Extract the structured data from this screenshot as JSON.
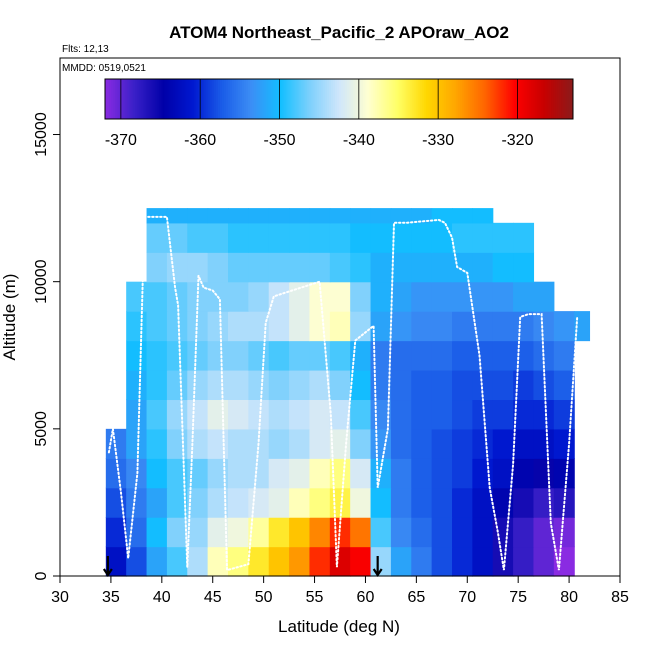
{
  "chart_data": {
    "type": "heatmap",
    "title": "ATOM4 Northeast_Pacific_2 APOraw_AO2",
    "annotations": [
      "Flts: 12,13",
      "MMDD: 0519,0521"
    ],
    "xlabel": "Latitude (deg N)",
    "ylabel": "Altitude (m)",
    "xlim": [
      30,
      85
    ],
    "ylim": [
      0,
      17600
    ],
    "xticks": [
      30,
      35,
      40,
      45,
      50,
      55,
      60,
      65,
      70,
      75,
      80,
      85
    ],
    "yticks": [
      0,
      5000,
      10000,
      15000
    ],
    "colorbar": {
      "placement": "top",
      "range": [
        -372,
        -313
      ],
      "ticks": [
        -370,
        -360,
        -350,
        -340,
        -330,
        -320
      ],
      "colors": [
        "#8a2be2",
        "#3a20c8",
        "#0000a8",
        "#0018d0",
        "#1a5ce8",
        "#3c8ef5",
        "#12bfff",
        "#7dd0fc",
        "#cfe6fb",
        "#ffffd0",
        "#ffff66",
        "#ffd700",
        "#ffa500",
        "#ff6400",
        "#ff0000",
        "#c80000",
        "#8b1a1a"
      ]
    },
    "curtain": {
      "lat_edges": [
        34.5,
        36.5,
        38.5,
        40.5,
        42.5,
        44.5,
        46.5,
        48.5,
        50.5,
        52.5,
        54.5,
        56.5,
        58.5,
        60.5,
        62.5,
        64.5,
        66.5,
        68.5,
        70.5,
        72.5,
        74.5,
        76.5,
        78.5,
        80.5,
        82.0
      ],
      "alt_edges": [
        0,
        1000,
        2000,
        3000,
        4000,
        5000,
        6000,
        7000,
        8000,
        9000,
        10000,
        11000,
        12000,
        12500
      ],
      "values": [
        [
          -362,
          -358,
          -352,
          -348,
          -344,
          -338,
          -336,
          -333,
          -330,
          -327,
          -322,
          -318,
          -320,
          -345,
          -352,
          -355,
          -358,
          -360,
          -362,
          -366,
          -368,
          -370,
          -372,
          null
        ],
        [
          -360,
          -356,
          -350,
          -346,
          -345,
          -341,
          -340,
          -337,
          -333,
          -330,
          -326,
          -322,
          -325,
          -348,
          -354,
          -356,
          -358,
          -360,
          -362,
          -366,
          -368,
          -370,
          -371,
          null
        ],
        [
          -358,
          -355,
          -352,
          -348,
          -346,
          -344,
          -343,
          -342,
          -341,
          -338,
          -336,
          -334,
          -340,
          -350,
          -355,
          -357,
          -358,
          -360,
          -362,
          -364,
          -366,
          -368,
          -367,
          null
        ],
        [
          -356,
          -354,
          -350,
          -348,
          -347,
          -345,
          -344,
          -344,
          -342,
          -341,
          -338,
          -336,
          -342,
          -351,
          -355,
          -357,
          -358,
          -359,
          -361,
          -362,
          -364,
          -365,
          -364,
          null
        ],
        [
          -355,
          -352,
          -349,
          -346,
          -344,
          -343,
          -344,
          -344,
          -345,
          -344,
          -342,
          -341,
          -346,
          -353,
          -356,
          -357,
          -358,
          -359,
          -360,
          -361,
          -362,
          -362,
          -361,
          null
        ],
        [
          null,
          -352,
          -348,
          -345,
          -343,
          -341,
          -342,
          -343,
          -344,
          -343,
          -342,
          -343,
          -348,
          -354,
          -356,
          -357,
          -357,
          -358,
          -359,
          -359,
          -360,
          -360,
          -359,
          null
        ],
        [
          null,
          -351,
          -349,
          -347,
          -345,
          -344,
          -344,
          -345,
          -346,
          -345,
          -344,
          -346,
          -350,
          -355,
          -356,
          -357,
          -357,
          -358,
          -358,
          -358,
          -359,
          -358,
          -357,
          null
        ],
        [
          null,
          -350,
          -349,
          -348,
          -347,
          -346,
          -346,
          -347,
          -348,
          -347,
          -347,
          -348,
          -351,
          -355,
          -356,
          -356,
          -356,
          -357,
          -357,
          -357,
          -357,
          -356,
          -355,
          null
        ],
        [
          null,
          -349,
          -348,
          -347,
          -346,
          -345,
          -344,
          -344,
          -343,
          -341,
          -339,
          -338,
          -345,
          -352,
          -353,
          -354,
          -354,
          -355,
          -355,
          -355,
          -355,
          -354,
          -353,
          -352
        ],
        [
          null,
          -348,
          -348,
          -347,
          -346,
          -346,
          -346,
          -345,
          -343,
          -341,
          -339,
          -339,
          -346,
          -351,
          -352,
          -353,
          -353,
          -353,
          -353,
          -353,
          -352,
          -352,
          null,
          null
        ],
        [
          null,
          null,
          -346,
          -345,
          -345,
          -346,
          -347,
          -347,
          -347,
          -347,
          -347,
          -348,
          -349,
          -351,
          -351,
          -351,
          -351,
          -351,
          -351,
          -350,
          -350,
          null,
          null,
          null
        ],
        [
          null,
          null,
          -347,
          -347,
          -348,
          -348,
          -349,
          -349,
          -349,
          -349,
          -349,
          -349,
          -350,
          -350,
          -350,
          -350,
          -350,
          -349,
          -349,
          -349,
          -349,
          null,
          null,
          null
        ],
        [
          null,
          null,
          -351,
          -351,
          -351,
          -351,
          -351,
          -351,
          -351,
          -351,
          -351,
          -351,
          -351,
          -351,
          -351,
          -351,
          -350,
          -350,
          -350,
          null,
          null,
          null,
          null,
          null
        ]
      ]
    },
    "flight_track": {
      "lat": [
        34.8,
        35.2,
        36.0,
        36.7,
        37.6,
        38.3,
        40.5,
        41.3,
        41.6,
        42.5,
        43.0,
        43.6,
        44.1,
        45.0,
        45.7,
        46.4,
        48.5,
        49.5,
        50.2,
        51.0,
        52.8,
        55.5,
        56.6,
        57.2,
        58.1,
        59.0,
        60.8,
        61.2,
        62.2,
        62.8,
        64.0,
        67.2,
        67.8,
        68.5,
        69.0,
        70.0,
        71.2,
        72.2,
        73.0,
        73.6,
        74.5,
        75.2,
        76.0,
        77.3,
        78.2,
        79.0,
        80.0,
        80.8
      ],
      "alt": [
        4200,
        5000,
        2800,
        600,
        3500,
        12200,
        12200,
        9800,
        9200,
        300,
        4500,
        10200,
        9800,
        9700,
        9400,
        200,
        400,
        4500,
        8600,
        9500,
        9700,
        10000,
        5500,
        300,
        4500,
        8000,
        8500,
        3000,
        5000,
        12000,
        12000,
        12100,
        12000,
        11500,
        10500,
        10300,
        7500,
        3000,
        1500,
        200,
        3800,
        8800,
        8900,
        8900,
        1800,
        200,
        4500,
        8800
      ]
    },
    "markers": [
      {
        "lat": 34.7,
        "alt": 0,
        "symbol": "down-arrow"
      },
      {
        "lat": 61.2,
        "alt": 0,
        "symbol": "down-arrow"
      }
    ]
  }
}
